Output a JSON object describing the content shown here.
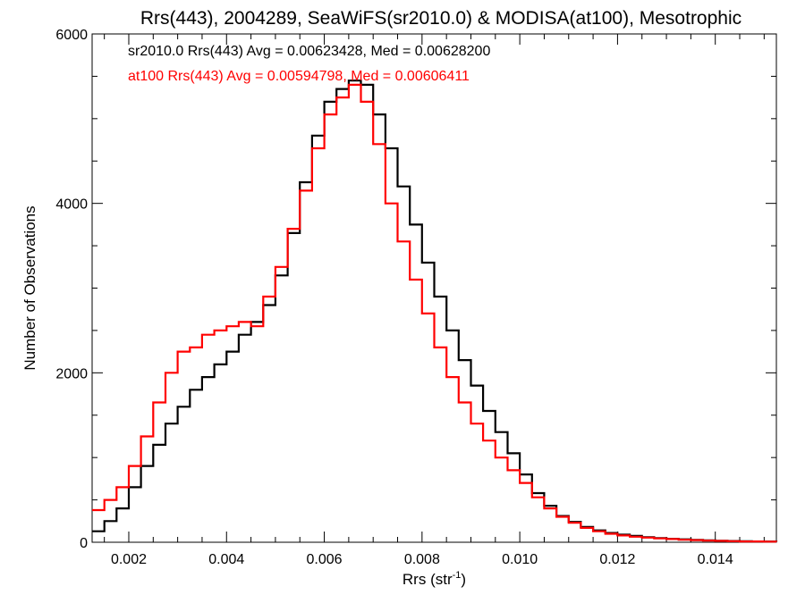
{
  "chart_data": {
    "type": "line",
    "title": "Rrs(443), 2004289, SeaWiFS(sr2010.0) & MODISA(at100), Mesotrophic",
    "xlabel": "Rrs (str",
    "xlabel_sup": "-1",
    "xlabel_close": ")",
    "ylabel": "Number of Observations",
    "xlim": [
      0.00125,
      0.01525
    ],
    "ylim": [
      0,
      6000
    ],
    "xticks": [
      0.002,
      0.004,
      0.006,
      0.008,
      0.01,
      0.012,
      0.014
    ],
    "xtick_labels": [
      "0.002",
      "0.004",
      "0.006",
      "0.008",
      "0.010",
      "0.012",
      "0.014"
    ],
    "yticks": [
      0,
      2000,
      4000,
      6000
    ],
    "ytick_labels": [
      "0",
      "2000",
      "4000",
      "6000"
    ],
    "legend_placement": "top-left",
    "grid": false,
    "series": [
      {
        "name": "sr2010.0 Rrs(443) Avg = 0.00623428, Med = 0.00628200",
        "color": "#000000",
        "x": [
          0.00125,
          0.0015,
          0.00175,
          0.002,
          0.00225,
          0.0025,
          0.00275,
          0.003,
          0.00325,
          0.0035,
          0.00375,
          0.004,
          0.00425,
          0.0045,
          0.00475,
          0.005,
          0.00525,
          0.0055,
          0.00575,
          0.006,
          0.00625,
          0.0065,
          0.00675,
          0.007,
          0.00725,
          0.0075,
          0.00775,
          0.008,
          0.00825,
          0.0085,
          0.00875,
          0.009,
          0.00925,
          0.0095,
          0.00975,
          0.01,
          0.01025,
          0.0105,
          0.01075,
          0.011,
          0.01125,
          0.0115,
          0.01175,
          0.012,
          0.01225,
          0.0125,
          0.01275,
          0.013,
          0.01325,
          0.0135,
          0.01375,
          0.014,
          0.01425,
          0.0145,
          0.01475,
          0.015,
          0.01525
        ],
        "y": [
          130,
          250,
          400,
          650,
          900,
          1150,
          1400,
          1600,
          1800,
          1950,
          2100,
          2250,
          2450,
          2600,
          2800,
          3150,
          3650,
          4250,
          4800,
          5200,
          5350,
          5450,
          5400,
          5050,
          4650,
          4200,
          3750,
          3300,
          2900,
          2500,
          2150,
          1850,
          1550,
          1300,
          1050,
          800,
          580,
          430,
          310,
          240,
          180,
          140,
          110,
          90,
          75,
          60,
          50,
          40,
          35,
          28,
          22,
          18,
          15,
          12,
          10,
          8,
          7
        ]
      },
      {
        "name": "at100 Rrs(443) Avg = 0.00594798, Med = 0.00606411",
        "color": "#ff0000",
        "x": [
          0.00125,
          0.0015,
          0.00175,
          0.002,
          0.00225,
          0.0025,
          0.00275,
          0.003,
          0.00325,
          0.0035,
          0.00375,
          0.004,
          0.00425,
          0.0045,
          0.00475,
          0.005,
          0.00525,
          0.0055,
          0.00575,
          0.006,
          0.00625,
          0.0065,
          0.00675,
          0.007,
          0.00725,
          0.0075,
          0.00775,
          0.008,
          0.00825,
          0.0085,
          0.00875,
          0.009,
          0.00925,
          0.0095,
          0.00975,
          0.01,
          0.01025,
          0.0105,
          0.01075,
          0.011,
          0.01125,
          0.0115,
          0.01175,
          0.012,
          0.01225,
          0.0125,
          0.01275,
          0.013,
          0.01325,
          0.0135,
          0.01375,
          0.014,
          0.01425,
          0.0145,
          0.01475,
          0.015,
          0.01525
        ],
        "y": [
          380,
          500,
          650,
          900,
          1250,
          1650,
          2000,
          2250,
          2300,
          2450,
          2500,
          2550,
          2600,
          2550,
          2900,
          3250,
          3700,
          4150,
          4650,
          5050,
          5250,
          5400,
          5200,
          4700,
          4000,
          3550,
          3100,
          2700,
          2300,
          1950,
          1650,
          1400,
          1200,
          1000,
          850,
          700,
          530,
          400,
          300,
          230,
          170,
          130,
          100,
          80,
          65,
          55,
          45,
          38,
          30,
          25,
          20,
          16,
          13,
          10,
          9,
          7,
          6
        ]
      }
    ]
  }
}
